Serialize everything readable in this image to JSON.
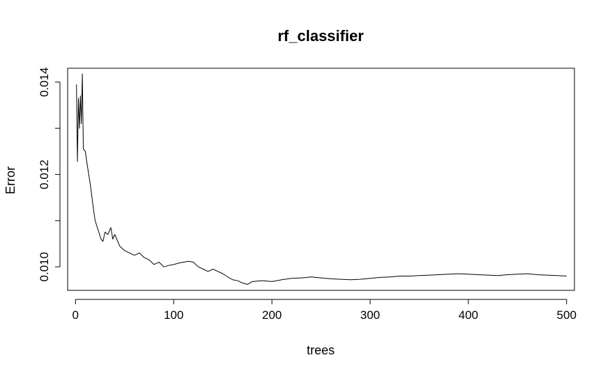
{
  "chart_data": {
    "type": "line",
    "title": "rf_classifier",
    "xlabel": "trees",
    "ylabel": "Error",
    "xlim": [
      -8,
      508
    ],
    "ylim": [
      0.00949,
      0.0143
    ],
    "x_ticks": [
      0,
      100,
      200,
      300,
      400,
      500
    ],
    "x_tick_labels": [
      "0",
      "100",
      "200",
      "300",
      "400",
      "500"
    ],
    "y_ticks": [
      0.01,
      0.011,
      0.012,
      0.013,
      0.014
    ],
    "y_tick_labels": [
      "0.010",
      "",
      "0.012",
      "",
      "0.014"
    ],
    "grid": false,
    "line_color": "#000000",
    "series": [
      {
        "x": [
          1,
          2,
          3,
          4,
          5,
          6,
          7,
          8,
          10,
          12,
          15,
          18,
          20,
          23,
          26,
          28,
          30,
          33,
          36,
          38,
          40,
          45,
          50,
          55,
          60,
          65,
          70,
          75,
          80,
          85,
          90,
          95,
          100,
          105,
          110,
          115,
          120,
          125,
          130,
          135,
          140,
          145,
          150,
          155,
          160,
          165,
          170,
          175,
          180,
          190,
          200,
          210,
          220,
          230,
          240,
          250,
          260,
          270,
          280,
          290,
          300,
          310,
          320,
          330,
          340,
          350,
          360,
          370,
          380,
          390,
          400,
          410,
          420,
          430,
          440,
          450,
          460,
          470,
          480,
          490,
          500
        ],
        "values": [
          0.01395,
          0.01228,
          0.01365,
          0.013,
          0.0137,
          0.0131,
          0.01418,
          0.01255,
          0.0125,
          0.0122,
          0.0118,
          0.0113,
          0.011,
          0.0108,
          0.0106,
          0.01055,
          0.01075,
          0.0107,
          0.01085,
          0.0106,
          0.0107,
          0.01045,
          0.01035,
          0.0103,
          0.01025,
          0.0103,
          0.0102,
          0.01015,
          0.01005,
          0.0101,
          0.01,
          0.01003,
          0.01005,
          0.01008,
          0.0101,
          0.01012,
          0.0101,
          0.01,
          0.00995,
          0.0099,
          0.00995,
          0.0099,
          0.00985,
          0.00978,
          0.00972,
          0.0097,
          0.00965,
          0.00962,
          0.00968,
          0.0097,
          0.00968,
          0.00972,
          0.00975,
          0.00976,
          0.00978,
          0.00976,
          0.00974,
          0.00973,
          0.00972,
          0.00973,
          0.00975,
          0.00977,
          0.00978,
          0.0098,
          0.0098,
          0.00981,
          0.00982,
          0.00983,
          0.00984,
          0.00985,
          0.00984,
          0.00983,
          0.00982,
          0.00981,
          0.00983,
          0.00984,
          0.00985,
          0.00983,
          0.00982,
          0.00981,
          0.0098
        ]
      }
    ]
  }
}
